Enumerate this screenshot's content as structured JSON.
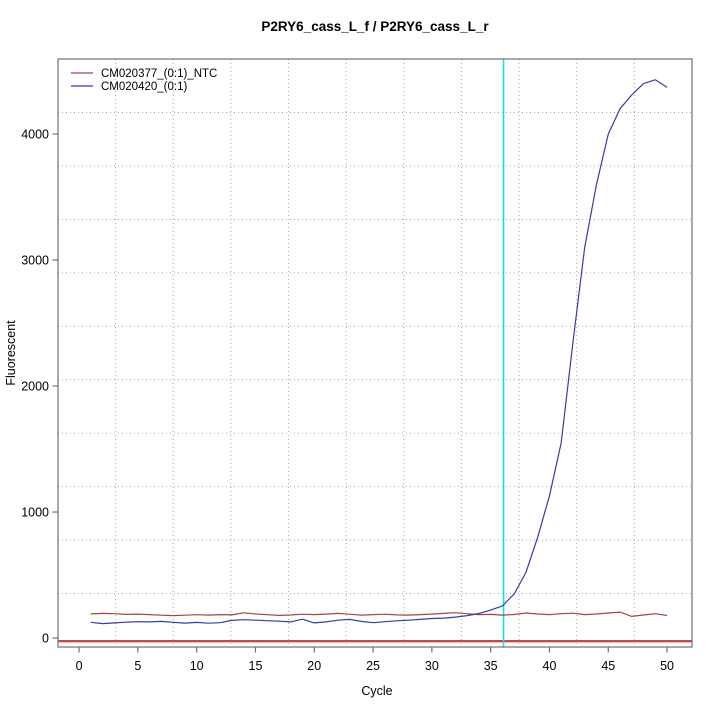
{
  "chart_data": {
    "type": "line",
    "title": "P2RY6_cass_L_f / P2RY6_cass_L_r",
    "xlabel": "Cycle",
    "ylabel": "Fluorescent",
    "x_ticks": [
      0,
      5,
      10,
      15,
      20,
      25,
      30,
      35,
      40,
      45,
      50
    ],
    "y_ticks": [
      0,
      1000,
      2000,
      3000,
      4000
    ],
    "xlim": [
      -1.79,
      52.12
    ],
    "ylim": [
      -71,
      4595
    ],
    "grid": {
      "style": "dotted",
      "divisions_x": 11,
      "divisions_y": 11,
      "color": "#a8a8a8"
    },
    "legend_position": "top-left",
    "x": [
      1,
      2,
      3,
      4,
      5,
      6,
      7,
      8,
      9,
      10,
      11,
      12,
      13,
      14,
      15,
      16,
      17,
      18,
      19,
      20,
      21,
      22,
      23,
      24,
      25,
      26,
      27,
      28,
      29,
      30,
      31,
      32,
      33,
      34,
      35,
      36,
      37,
      38,
      39,
      40,
      41,
      42,
      43,
      44,
      45,
      46,
      47,
      48,
      49,
      50
    ],
    "series": [
      {
        "name": "CM020377_(0:1)_NTC",
        "color": "#a34545",
        "values": [
          192,
          196,
          193,
          188,
          190,
          186,
          181,
          178,
          181,
          185,
          182,
          186,
          184,
          200,
          191,
          185,
          180,
          183,
          189,
          186,
          190,
          196,
          189,
          182,
          186,
          189,
          184,
          182,
          186,
          190,
          196,
          201,
          193,
          186,
          188,
          182,
          187,
          199,
          191,
          186,
          193,
          197,
          186,
          191,
          199,
          206,
          172,
          183,
          193,
          179
        ]
      },
      {
        "name": "CM020420_(0:1)",
        "color": "#3a3aa8",
        "values": [
          125,
          115,
          120,
          126,
          130,
          128,
          132,
          125,
          119,
          124,
          118,
          122,
          140,
          146,
          142,
          138,
          134,
          128,
          150,
          120,
          128,
          142,
          148,
          132,
          122,
          130,
          137,
          142,
          148,
          155,
          158,
          166,
          178,
          195,
          222,
          255,
          350,
          520,
          800,
          1130,
          1550,
          2350,
          3100,
          3600,
          4000,
          4200,
          4310,
          4400,
          4430,
          4370
        ]
      }
    ],
    "threshold_line": {
      "value": -25,
      "color": "#c24a4a"
    },
    "ct_line": {
      "cycle": 36.1,
      "color": "#00e6e6"
    },
    "box_color": "#707070",
    "background": "#ffffff"
  }
}
